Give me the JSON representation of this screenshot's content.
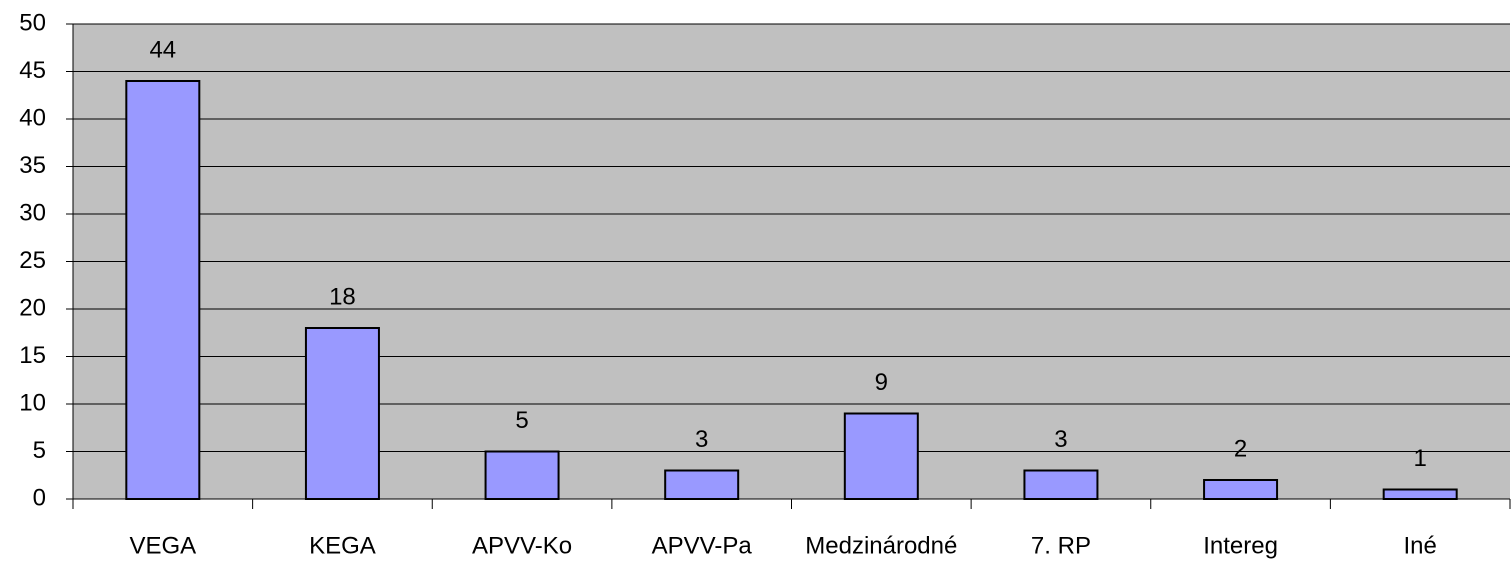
{
  "chart_data": {
    "type": "bar",
    "categories": [
      "VEGA",
      "KEGA",
      "APVV-Ko",
      "APVV-Pa",
      "Medzinárodné",
      "7. RP",
      "Intereg",
      "Iné"
    ],
    "values": [
      44,
      18,
      5,
      3,
      9,
      3,
      2,
      1
    ],
    "color": "#9999ff",
    "ylim": [
      0,
      50
    ],
    "yticks": [
      0,
      5,
      10,
      15,
      20,
      25,
      30,
      35,
      40,
      45,
      50
    ],
    "grid": true
  }
}
